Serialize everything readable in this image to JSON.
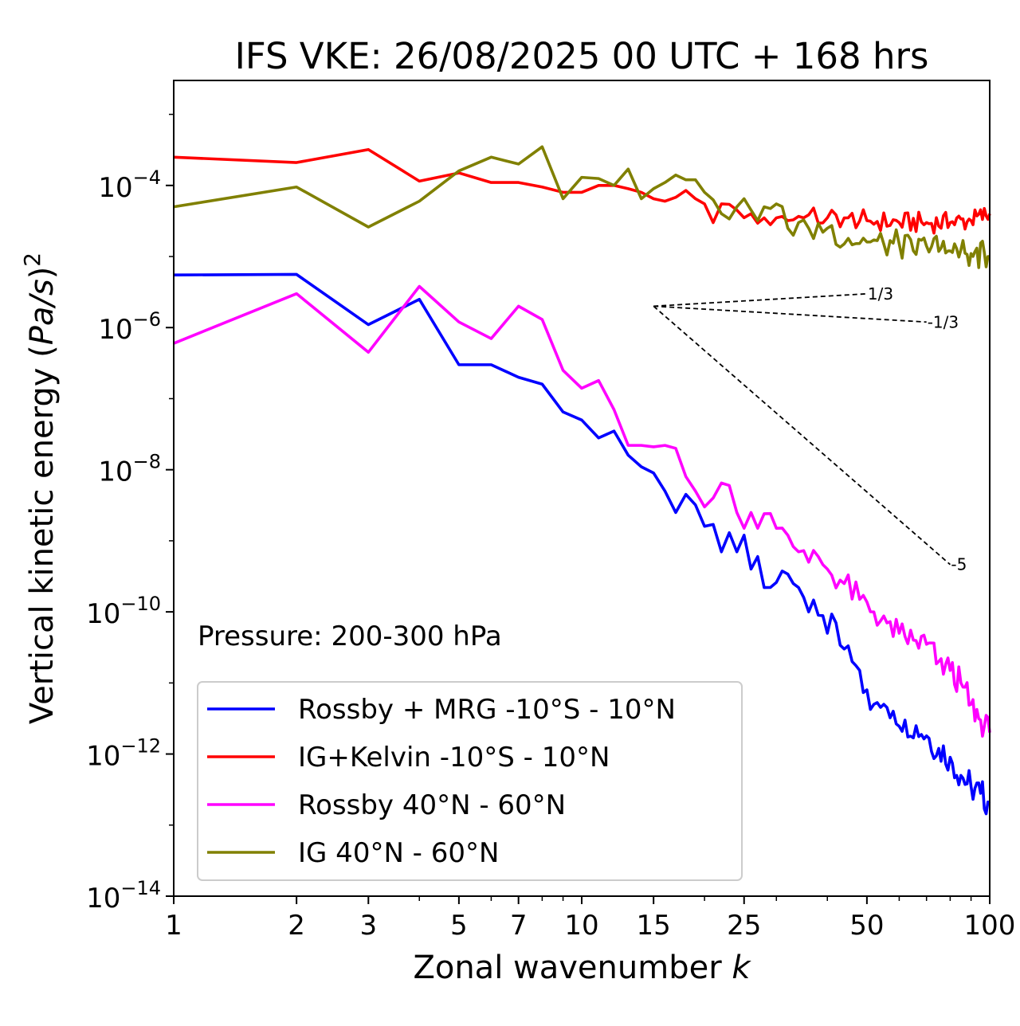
{
  "chart_data": {
    "type": "line",
    "title": "IFS VKE: 26/08/2025 00 UTC + 168 hrs",
    "xlabel_text": "Zonal wavenumber ",
    "xlabel_var": "k",
    "ylabel_text": "Vertical kinetic energy (",
    "ylabel_var": "Pa/s",
    "ylabel_close": ")",
    "ylabel_sup": "2",
    "xscale": "log",
    "yscale": "log",
    "xlim": [
      1,
      100
    ],
    "ylim": [
      1e-14,
      0.003
    ],
    "x_ticks": [
      1,
      2,
      3,
      5,
      7,
      10,
      15,
      25,
      50,
      100
    ],
    "x_tick_labels": [
      "1",
      "2",
      "3",
      "5",
      "7",
      "10",
      "15",
      "25",
      "50",
      "100"
    ],
    "y_ticks": [
      0.0001,
      1e-06,
      1e-08,
      1e-10,
      1e-12,
      1e-14
    ],
    "y_tick_base": "10",
    "y_tick_exponents": [
      "−4",
      "−6",
      "−8",
      "−10",
      "−12",
      "−14"
    ],
    "annotation": "Pressure: 200-300 hPa",
    "legend_position": "lower-left",
    "reference_slopes": [
      {
        "label": "1/3",
        "exponent": 0.3333,
        "x_start": 15,
        "x_end": 50,
        "y_start": 2e-06
      },
      {
        "label": "-1/3",
        "exponent": -0.3333,
        "x_start": 15,
        "x_end": 70,
        "y_start": 2e-06
      },
      {
        "label": "-5",
        "exponent": -5,
        "x_start": 15,
        "x_end": 80,
        "y_start": 2e-06
      }
    ],
    "series": [
      {
        "name": "Rossby + MRG -10°S - 10°N",
        "color": "#0000ff",
        "anchors": [
          [
            1,
            5.5e-06
          ],
          [
            2,
            5.6e-06
          ],
          [
            3,
            1.1e-06
          ],
          [
            4,
            2.5e-06
          ],
          [
            5,
            3e-07
          ],
          [
            6,
            3e-07
          ],
          [
            7,
            2e-07
          ],
          [
            8,
            1.6e-07
          ],
          [
            9,
            6.5e-08
          ],
          [
            10,
            5e-08
          ],
          [
            11,
            2.8e-08
          ],
          [
            12,
            3.5e-08
          ],
          [
            13,
            1.6e-08
          ],
          [
            14,
            1.1e-08
          ],
          [
            15,
            9e-09
          ],
          [
            16,
            5e-09
          ],
          [
            17,
            2.5e-09
          ],
          [
            18,
            4.5e-09
          ],
          [
            19,
            3.2e-09
          ],
          [
            20,
            1.6e-09
          ],
          [
            21,
            1.7e-09
          ],
          [
            22,
            7e-10
          ],
          [
            23,
            1.3e-09
          ],
          [
            24,
            7e-10
          ],
          [
            25,
            1.2e-09
          ],
          [
            26,
            4e-10
          ],
          [
            27,
            6e-10
          ],
          [
            28,
            2.2e-10
          ],
          [
            30,
            2.6e-10
          ],
          [
            32,
            3.4e-10
          ],
          [
            34,
            2.2e-10
          ],
          [
            36,
            1e-10
          ],
          [
            38,
            9e-11
          ],
          [
            40,
            5e-11
          ],
          [
            42,
            7e-11
          ],
          [
            44,
            3e-11
          ],
          [
            46,
            2e-11
          ],
          [
            48,
            1.5e-11
          ],
          [
            50,
            8e-12
          ],
          [
            52,
            5e-12
          ],
          [
            55,
            5e-12
          ],
          [
            58,
            4e-12
          ],
          [
            62,
            3e-12
          ],
          [
            66,
            2.5e-12
          ],
          [
            70,
            1.8e-12
          ],
          [
            75,
            1.2e-12
          ],
          [
            80,
            9e-13
          ],
          [
            85,
            5e-13
          ],
          [
            90,
            3.5e-13
          ],
          [
            95,
            2.8e-13
          ],
          [
            100,
            2e-13
          ]
        ],
        "noise": 0.45
      },
      {
        "name": "IG+Kelvin -10°S - 10°N",
        "color": "#ff0000",
        "anchors": [
          [
            1,
            0.00025
          ],
          [
            2,
            0.00021
          ],
          [
            3,
            0.00032
          ],
          [
            4,
            0.000115
          ],
          [
            5,
            0.00015
          ],
          [
            6,
            0.00011
          ],
          [
            7,
            0.00011
          ],
          [
            8,
            9.5e-05
          ],
          [
            9,
            8e-05
          ],
          [
            10,
            8e-05
          ],
          [
            11,
            0.0001
          ],
          [
            12,
            0.0001
          ],
          [
            13,
            9e-05
          ],
          [
            14,
            8e-05
          ],
          [
            15,
            6.5e-05
          ],
          [
            16,
            6e-05
          ],
          [
            17,
            6.8e-05
          ],
          [
            18,
            8.5e-05
          ],
          [
            19,
            6.5e-05
          ],
          [
            20,
            5.5e-05
          ],
          [
            21,
            3e-05
          ],
          [
            22,
            5.5e-05
          ],
          [
            24,
            4.5e-05
          ],
          [
            26,
            4e-05
          ],
          [
            28,
            3.5e-05
          ],
          [
            30,
            3.5e-05
          ],
          [
            35,
            3.5e-05
          ],
          [
            40,
            3.5e-05
          ],
          [
            45,
            3.5e-05
          ],
          [
            50,
            3.2e-05
          ],
          [
            60,
            3e-05
          ],
          [
            70,
            3e-05
          ],
          [
            80,
            3e-05
          ],
          [
            90,
            3.2e-05
          ],
          [
            100,
            4e-05
          ]
        ],
        "noise": 0.3
      },
      {
        "name": "Rossby 40°N - 60°N",
        "color": "#ff00ff",
        "anchors": [
          [
            1,
            6e-07
          ],
          [
            2,
            3e-06
          ],
          [
            3,
            4.5e-07
          ],
          [
            4,
            3.8e-06
          ],
          [
            5,
            1.2e-06
          ],
          [
            6,
            7e-07
          ],
          [
            7,
            2e-06
          ],
          [
            8,
            1.3e-06
          ],
          [
            9,
            2.5e-07
          ],
          [
            10,
            1.4e-07
          ],
          [
            11,
            1.8e-07
          ],
          [
            12,
            7e-08
          ],
          [
            13,
            2.2e-08
          ],
          [
            14,
            2.2e-08
          ],
          [
            15,
            2.1e-08
          ],
          [
            16,
            2.2e-08
          ],
          [
            17,
            2e-08
          ],
          [
            18,
            8e-09
          ],
          [
            19,
            5e-09
          ],
          [
            20,
            3e-09
          ],
          [
            21,
            4e-09
          ],
          [
            22,
            6.5e-09
          ],
          [
            23,
            6e-09
          ],
          [
            24,
            2.5e-09
          ],
          [
            25,
            1.5e-09
          ],
          [
            26,
            2.5e-09
          ],
          [
            27,
            1.5e-09
          ],
          [
            28,
            2.4e-09
          ],
          [
            30,
            1.5e-09
          ],
          [
            32,
            1.2e-09
          ],
          [
            34,
            7e-10
          ],
          [
            36,
            5e-10
          ],
          [
            38,
            6e-10
          ],
          [
            40,
            4e-10
          ],
          [
            44,
            2.5e-10
          ],
          [
            48,
            1.5e-10
          ],
          [
            52,
            1e-10
          ],
          [
            56,
            7e-11
          ],
          [
            60,
            5e-11
          ],
          [
            65,
            4e-11
          ],
          [
            70,
            3.5e-11
          ],
          [
            75,
            2e-11
          ],
          [
            80,
            1.5e-11
          ],
          [
            85,
            1e-11
          ],
          [
            90,
            5e-12
          ],
          [
            95,
            3e-12
          ],
          [
            100,
            2e-12
          ]
        ],
        "noise": 0.4
      },
      {
        "name": "IG 40°N - 60°N",
        "color": "#808000",
        "anchors": [
          [
            1,
            5e-05
          ],
          [
            2,
            9.5e-05
          ],
          [
            3,
            2.6e-05
          ],
          [
            4,
            6e-05
          ],
          [
            5,
            0.00016
          ],
          [
            6,
            0.00025
          ],
          [
            7,
            0.0002
          ],
          [
            8,
            0.00035
          ],
          [
            9,
            6.5e-05
          ],
          [
            10,
            0.00013
          ],
          [
            11,
            0.000125
          ],
          [
            12,
            0.0001
          ],
          [
            13,
            0.00017
          ],
          [
            14,
            6.5e-05
          ],
          [
            15,
            9e-05
          ],
          [
            16,
            0.00011
          ],
          [
            17,
            0.00014
          ],
          [
            18,
            0.00012
          ],
          [
            19,
            0.00012
          ],
          [
            20,
            8e-05
          ],
          [
            22,
            4e-05
          ],
          [
            24,
            5e-05
          ],
          [
            25,
            6.5e-05
          ],
          [
            26,
            4.5e-05
          ],
          [
            28,
            5e-05
          ],
          [
            30,
            5.5e-05
          ],
          [
            32,
            2.5e-05
          ],
          [
            34,
            3e-05
          ],
          [
            36,
            2.5e-05
          ],
          [
            40,
            2.5e-05
          ],
          [
            45,
            1.8e-05
          ],
          [
            50,
            1.6e-05
          ],
          [
            55,
            1.5e-05
          ],
          [
            60,
            1.5e-05
          ],
          [
            65,
            1.2e-05
          ],
          [
            70,
            1.4e-05
          ],
          [
            80,
            1.2e-05
          ],
          [
            90,
            1.1e-05
          ],
          [
            100,
            1e-05
          ]
        ],
        "noise": 0.4
      }
    ]
  }
}
